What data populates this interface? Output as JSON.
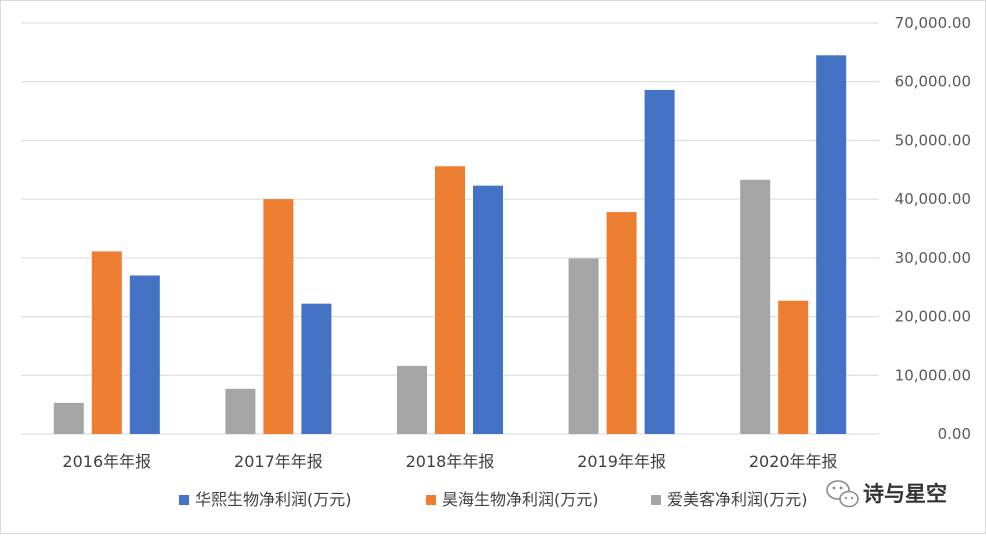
{
  "chart_data": {
    "type": "bar",
    "categories": [
      "2016年年报",
      "2017年年报",
      "2018年年报",
      "2019年年报",
      "2020年年报"
    ],
    "series": [
      {
        "name": "爱美客净利润(万元)",
        "color": "#a5a5a5",
        "values": [
          5300,
          7700,
          11600,
          29900,
          43300
        ]
      },
      {
        "name": "昊海生物净利润(万元)",
        "color": "#ed7d31",
        "values": [
          31100,
          40000,
          45600,
          37800,
          22700
        ]
      },
      {
        "name": "华熙生物净利润(万元)",
        "color": "#4472c4",
        "values": [
          27000,
          22200,
          42300,
          58600,
          64500
        ]
      }
    ],
    "legend_order": [
      2,
      1,
      0
    ],
    "ylim": [
      0,
      70000
    ],
    "yticks": [
      "0.00",
      "10,000.00",
      "20,000.00",
      "30,000.00",
      "40,000.00",
      "50,000.00",
      "60,000.00",
      "70,000.00"
    ],
    "ytick_values": [
      0,
      10000,
      20000,
      30000,
      40000,
      50000,
      60000,
      70000
    ],
    "y_axis_side": "right",
    "grid": true,
    "legend_position": "bottom",
    "title": "",
    "xlabel": "",
    "ylabel": ""
  },
  "watermark": {
    "text": "诗与星空",
    "icon": "wechat-icon"
  },
  "colors": {
    "grid": "#d9d9d9",
    "axis": "#d9d9d9"
  }
}
